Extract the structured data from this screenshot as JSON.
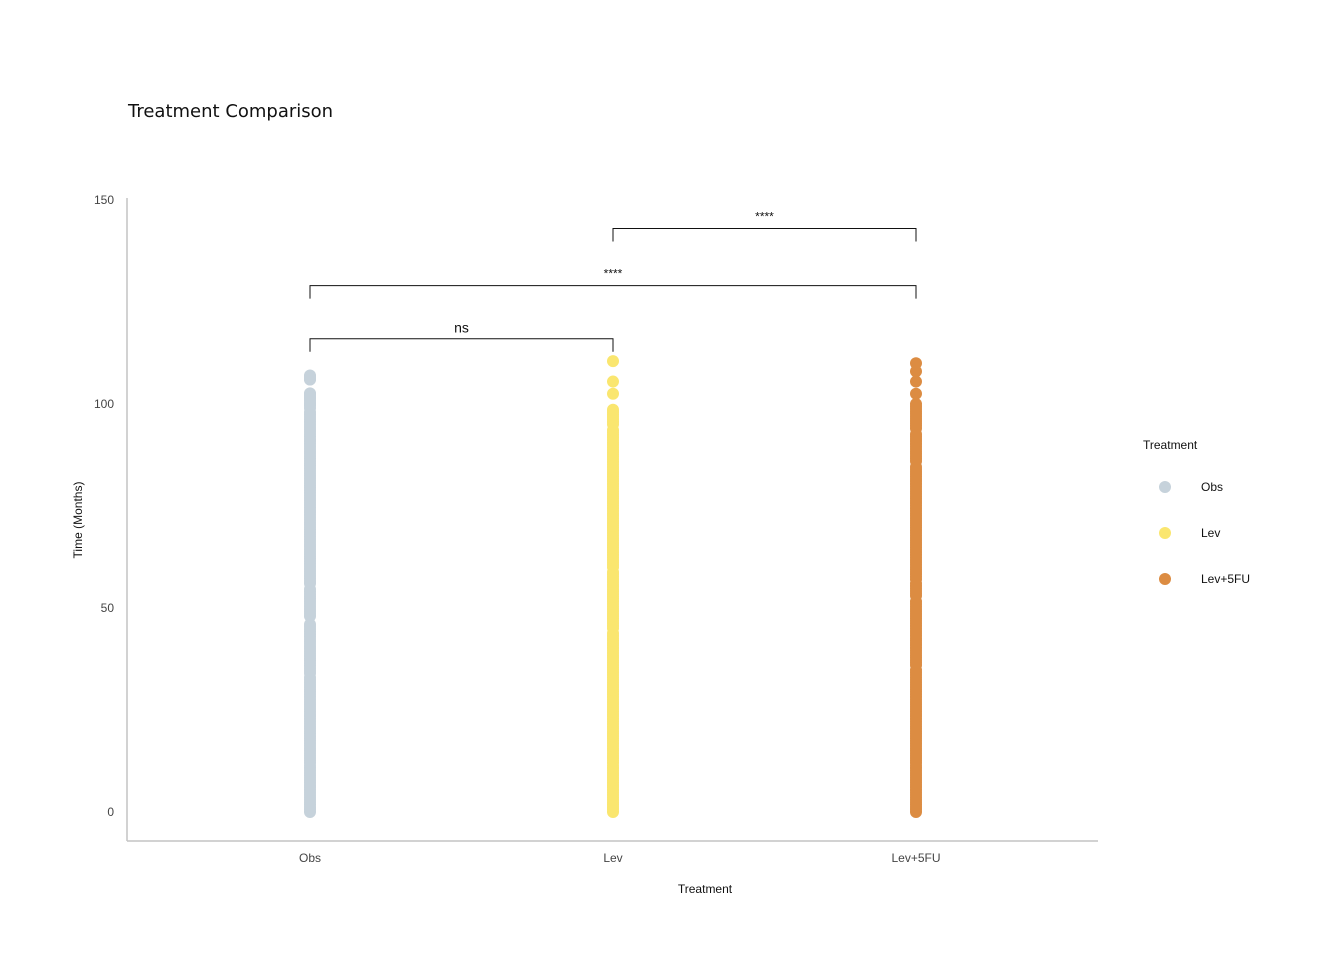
{
  "chart_data": {
    "type": "scatter",
    "title": "Treatment Comparison",
    "xlabel": "Treatment",
    "ylabel": "Time (Months)",
    "categories": [
      "Obs",
      "Lev",
      "Lev+5FU"
    ],
    "ylim": [
      0,
      150
    ],
    "yticks": [
      0,
      50,
      100,
      150
    ],
    "grid": false,
    "legend": {
      "title": "Treatment",
      "position": "right",
      "entries": [
        "Obs",
        "Lev",
        "Lev+5FU"
      ]
    },
    "colors": {
      "Obs": "#c6d2db",
      "Lev": "#fae66f",
      "Lev+5FU": "#dc8c42"
    },
    "series": [
      {
        "name": "Obs",
        "ranges": [
          [
            0,
            33
          ],
          [
            34,
            46
          ],
          [
            48,
            55
          ],
          [
            56,
            98
          ],
          [
            99,
            103
          ],
          [
            106,
            107
          ]
        ],
        "points": [
          100,
          101.5,
          102.5,
          106,
          106.5,
          107
        ]
      },
      {
        "name": "Lev",
        "ranges": [
          [
            0,
            44
          ],
          [
            45,
            59
          ],
          [
            60,
            94
          ],
          [
            95,
            99
          ]
        ],
        "points": [
          102.5,
          105.5,
          110.5
        ]
      },
      {
        "name": "Lev+5FU",
        "ranges": [
          [
            0,
            35
          ],
          [
            36,
            52
          ],
          [
            53,
            56
          ],
          [
            57,
            85
          ],
          [
            86,
            93
          ],
          [
            94,
            100
          ]
        ],
        "points": [
          102.5,
          105.5,
          108,
          110
        ]
      }
    ],
    "comparisons": [
      {
        "group1": "Obs",
        "group2": "Lev",
        "label": "ns",
        "y": 116
      },
      {
        "group1": "Obs",
        "group2": "Lev+5FU",
        "label": "****",
        "y": 129
      },
      {
        "group1": "Lev",
        "group2": "Lev+5FU",
        "label": "****",
        "y": 143
      }
    ]
  }
}
